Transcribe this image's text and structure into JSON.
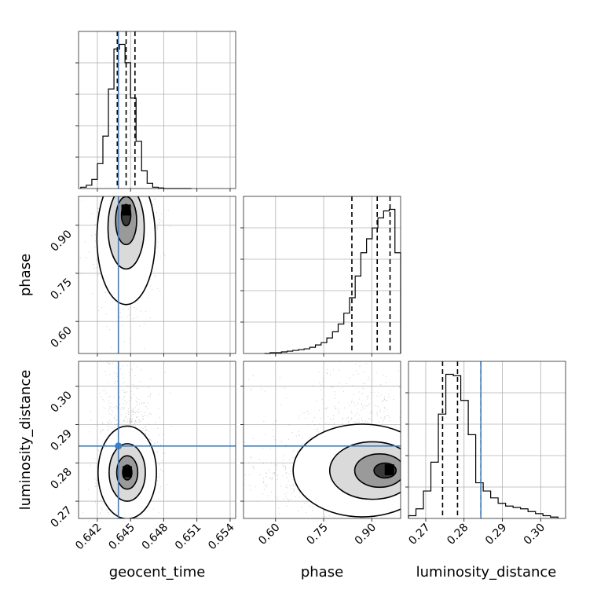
{
  "chart_data": {
    "type": "corner",
    "parameters": [
      "geocent_time",
      "phase",
      "luminosity_distance"
    ],
    "truth": {
      "geocent_time": 0.6439,
      "phase": null,
      "luminosity_distance": 0.2844
    },
    "colors": {
      "truth": "#3b7fc4",
      "hist": "#000000",
      "samples": "#6e6e6e"
    },
    "axes": {
      "geocent_time": {
        "xlabel": "geocent_time",
        "range": [
          0.6403,
          0.6545
        ],
        "ticks": [
          0.642,
          0.645,
          0.648,
          0.651,
          0.654
        ],
        "tick_labels": [
          "0.642",
          "0.645",
          "0.648",
          "0.651",
          "0.654"
        ]
      },
      "phase": {
        "xlabel": "phase",
        "ylabel": "phase",
        "range": [
          0.5,
          0.99
        ],
        "ticks": [
          0.6,
          0.75,
          0.9
        ],
        "tick_labels": [
          "0.60",
          "0.75",
          "0.90"
        ]
      },
      "luminosity_distance": {
        "xlabel": "luminosity_distance",
        "ylabel": "luminosity_distance",
        "range": [
          0.2655,
          0.3065
        ],
        "ticks": [
          0.27,
          0.28,
          0.29,
          0.3
        ],
        "tick_labels": [
          "0.27",
          "0.28",
          "0.29",
          "0.30"
        ]
      }
    },
    "histograms": {
      "geocent_time": {
        "edges_range": [
          0.6405,
          0.6505
        ],
        "counts": [
          2,
          5,
          14,
          38,
          80,
          152,
          213,
          220,
          192,
          138,
          72,
          27,
          8,
          2,
          1,
          0,
          0,
          0,
          0,
          0
        ],
        "quantiles": [
          0.6438,
          0.6446,
          0.6454
        ]
      },
      "phase": {
        "edges_range": [
          0.565,
          0.99
        ],
        "counts": [
          0,
          1,
          1,
          2,
          3,
          4,
          5,
          6,
          8,
          11,
          14,
          20,
          28,
          38,
          52,
          72,
          100,
          130,
          148,
          162,
          175,
          184,
          186,
          130
        ],
        "quantiles": [
          0.838,
          0.917,
          0.957
        ]
      },
      "luminosity_distance": {
        "edges_range": [
          0.2655,
          0.3045
        ],
        "counts": [
          4,
          14,
          40,
          82,
          152,
          210,
          208,
          172,
          122,
          52,
          40,
          30,
          22,
          18,
          16,
          14,
          10,
          7,
          4,
          2
        ],
        "quantiles": [
          0.2744,
          0.2783,
          0.2844
        ]
      }
    },
    "pairs": [
      {
        "x": "geocent_time",
        "y": "phase",
        "peak": [
          0.6446,
          0.945
        ]
      },
      {
        "x": "geocent_time",
        "y": "luminosity_distance",
        "peak": [
          0.6447,
          0.2775
        ]
      },
      {
        "x": "phase",
        "y": "luminosity_distance",
        "peak": [
          0.955,
          0.278
        ]
      }
    ]
  }
}
